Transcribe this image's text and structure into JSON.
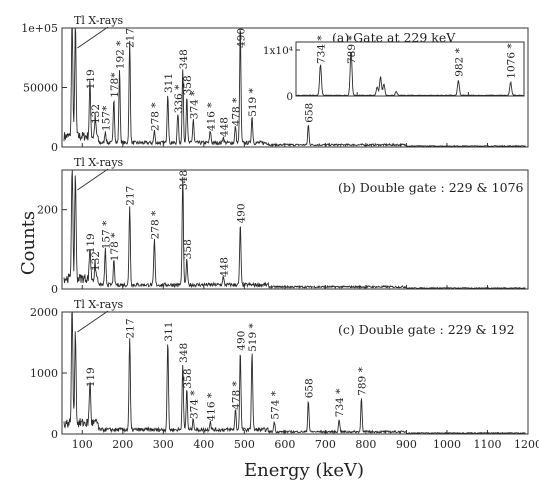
{
  "chart_data": {
    "type": "line",
    "xlabel": "Energy (keV)",
    "ylabel": "Counts",
    "xlim": [
      50,
      1200
    ],
    "x_ticks": [
      "100",
      "200",
      "300",
      "400",
      "500",
      "600",
      "700",
      "800",
      "900",
      "1000",
      "1100",
      "1200"
    ],
    "panels": [
      {
        "title": "(a) Gate at 229 keV",
        "ylim": [
          0,
          100000
        ],
        "y_ticks": [
          {
            "v": 0,
            "t": "0"
          },
          {
            "v": 50000,
            "t": "50000"
          },
          {
            "v": 100000,
            "t": "1e+05"
          }
        ],
        "xray_label": "Tl X-rays",
        "peaks": [
          {
            "x": 75,
            "y": 100000,
            "t": ""
          },
          {
            "x": 83,
            "y": 95000,
            "t": ""
          },
          {
            "x": 119,
            "y": 45000,
            "t": "119"
          },
          {
            "x": 132,
            "y": 16000,
            "t": "132"
          },
          {
            "x": 157,
            "y": 10000,
            "t": "157*"
          },
          {
            "x": 178,
            "y": 38000,
            "t": "178*"
          },
          {
            "x": 192,
            "y": 62000,
            "t": "192 *"
          },
          {
            "x": 217,
            "y": 85000,
            "t": "217"
          },
          {
            "x": 278,
            "y": 10000,
            "t": "278 *"
          },
          {
            "x": 311,
            "y": 42000,
            "t": "311"
          },
          {
            "x": 336,
            "y": 25000,
            "t": "336 *"
          },
          {
            "x": 348,
            "y": 62000,
            "t": "348"
          },
          {
            "x": 358,
            "y": 40000,
            "t": "358"
          },
          {
            "x": 374,
            "y": 20000,
            "t": "374 *"
          },
          {
            "x": 416,
            "y": 10000,
            "t": "416 *"
          },
          {
            "x": 448,
            "y": 5000,
            "t": "448"
          },
          {
            "x": 478,
            "y": 14000,
            "t": "478 *"
          },
          {
            "x": 490,
            "y": 100000,
            "t": "490"
          },
          {
            "x": 519,
            "y": 22000,
            "t": "519 *"
          },
          {
            "x": 658,
            "y": 17000,
            "t": "658"
          }
        ],
        "inset": {
          "ylabel_exp": "1x10⁴",
          "y_ticks": [
            {
              "v": 0,
              "t": "0"
            },
            {
              "v": 1,
              "t": "1x10⁴"
            }
          ],
          "x_ticks": [
            "800",
            "1000"
          ],
          "xlim": [
            690,
            1100
          ],
          "peaks": [
            {
              "x": 734,
              "y": 0.68,
              "t": "734 *"
            },
            {
              "x": 789,
              "y": 1.0,
              "t": "789 *"
            },
            {
              "x": 982,
              "y": 0.33,
              "t": "982 *"
            },
            {
              "x": 1076,
              "y": 0.29,
              "t": "1076 *"
            }
          ]
        }
      },
      {
        "title": "(b) Double gate : 229 & 1076",
        "ylim": [
          0,
          300
        ],
        "y_ticks": [
          {
            "v": 0,
            "t": "0"
          },
          {
            "v": 200,
            "t": "200"
          }
        ],
        "xray_label": "Tl X-rays",
        "peaks": [
          {
            "x": 75,
            "y": 300,
            "t": ""
          },
          {
            "x": 83,
            "y": 270,
            "t": ""
          },
          {
            "x": 119,
            "y": 80,
            "t": "119"
          },
          {
            "x": 132,
            "y": 35,
            "t": "132"
          },
          {
            "x": 157,
            "y": 90,
            "t": "157 *"
          },
          {
            "x": 178,
            "y": 60,
            "t": "178 *"
          },
          {
            "x": 217,
            "y": 200,
            "t": "217"
          },
          {
            "x": 278,
            "y": 115,
            "t": "278 *"
          },
          {
            "x": 348,
            "y": 270,
            "t": "348"
          },
          {
            "x": 358,
            "y": 65,
            "t": "358"
          },
          {
            "x": 448,
            "y": 20,
            "t": "448"
          },
          {
            "x": 490,
            "y": 155,
            "t": "490"
          }
        ]
      },
      {
        "title": "(c) Double gate : 229 & 192",
        "ylim": [
          0,
          2000
        ],
        "y_ticks": [
          {
            "v": 0,
            "t": "0"
          },
          {
            "v": 1000,
            "t": "1000"
          },
          {
            "v": 2000,
            "t": "2000"
          }
        ],
        "xray_label": "Tl X-rays",
        "peaks": [
          {
            "x": 75,
            "y": 2000,
            "t": ""
          },
          {
            "x": 83,
            "y": 1550,
            "t": ""
          },
          {
            "x": 119,
            "y": 700,
            "t": "119"
          },
          {
            "x": 217,
            "y": 1500,
            "t": "217"
          },
          {
            "x": 311,
            "y": 1450,
            "t": "311"
          },
          {
            "x": 348,
            "y": 1100,
            "t": "348"
          },
          {
            "x": 358,
            "y": 680,
            "t": "358"
          },
          {
            "x": 374,
            "y": 180,
            "t": "374 *"
          },
          {
            "x": 416,
            "y": 140,
            "t": "416 *"
          },
          {
            "x": 478,
            "y": 330,
            "t": "478 *"
          },
          {
            "x": 490,
            "y": 1300,
            "t": "490"
          },
          {
            "x": 519,
            "y": 1280,
            "t": "519 *"
          },
          {
            "x": 574,
            "y": 170,
            "t": "574 *"
          },
          {
            "x": 658,
            "y": 520,
            "t": "658"
          },
          {
            "x": 734,
            "y": 210,
            "t": "734 *"
          },
          {
            "x": 789,
            "y": 560,
            "t": "789 *"
          }
        ]
      }
    ]
  }
}
